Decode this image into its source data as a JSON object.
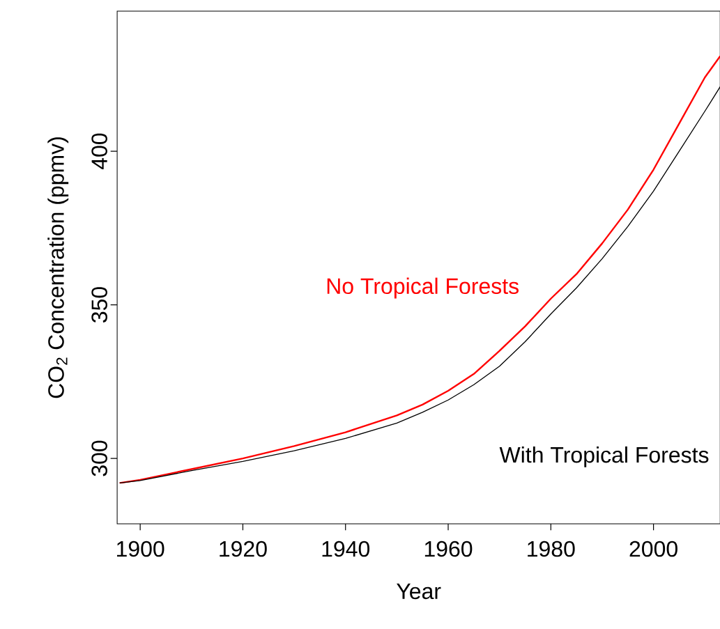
{
  "chart_data": {
    "type": "line",
    "xlabel": "Year",
    "ylabel": "CO$_{2}$ Concentration (ppmv)",
    "xlim": [
      1895.5,
      2013
    ],
    "ylim": [
      278.7,
      445.6
    ],
    "xticks": [
      1900,
      1920,
      1940,
      1960,
      1980,
      2000
    ],
    "yticks": [
      300,
      350,
      400
    ],
    "grid": false,
    "legend": false,
    "marker": "none",
    "line_style": "solid",
    "x": [
      1896,
      1900,
      1910,
      1920,
      1930,
      1940,
      1950,
      1955,
      1960,
      1965,
      1970,
      1975,
      1980,
      1985,
      1990,
      1995,
      2000,
      2005,
      2010,
      2013
    ],
    "series": [
      {
        "name": "No Tropical Forests",
        "color": "#ff0000",
        "values": [
          292,
          293,
          296.5,
          300,
          304,
          308.5,
          314,
          317.5,
          322,
          327.5,
          335,
          343,
          352,
          360,
          370,
          381,
          394,
          409,
          424,
          431
        ]
      },
      {
        "name": "With Tropical Forests",
        "color": "#000000",
        "values": [
          292,
          292.8,
          296,
          299,
          302.5,
          306.5,
          311.5,
          315,
          319,
          324,
          330,
          338,
          347,
          355.5,
          365,
          375.5,
          387,
          400,
          413,
          421
        ]
      }
    ]
  }
}
